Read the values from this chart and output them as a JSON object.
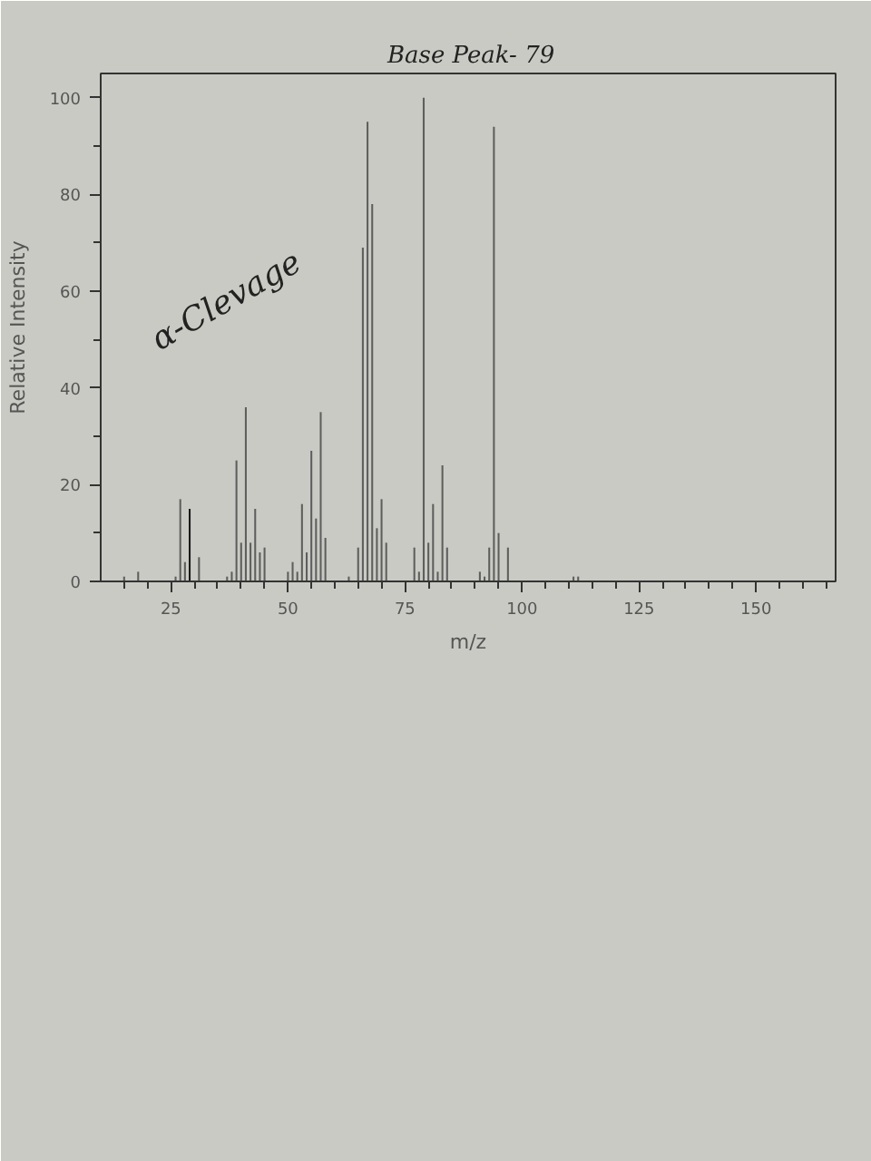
{
  "chart_data": {
    "type": "bar",
    "xlabel": "m/z",
    "ylabel": "Relative Intensity",
    "x": [
      15,
      18,
      26,
      27,
      28,
      29,
      31,
      37,
      38,
      39,
      40,
      41,
      42,
      43,
      44,
      45,
      50,
      51,
      52,
      53,
      54,
      55,
      56,
      57,
      58,
      63,
      65,
      66,
      67,
      68,
      69,
      70,
      71,
      77,
      78,
      79,
      80,
      81,
      82,
      83,
      84,
      91,
      92,
      93,
      94,
      95,
      97,
      111,
      112
    ],
    "values": [
      1,
      2,
      1,
      17,
      4,
      15,
      5,
      1,
      2,
      25,
      8,
      36,
      8,
      15,
      6,
      7,
      2,
      4,
      2,
      16,
      6,
      27,
      13,
      35,
      9,
      1,
      7,
      69,
      95,
      78,
      11,
      17,
      8,
      7,
      2,
      100,
      8,
      16,
      2,
      24,
      7,
      2,
      1,
      7,
      94,
      10,
      7,
      1,
      1
    ],
    "colors": [
      "#5e5e5e",
      "#5e5e5e",
      "#5e5e5e",
      "#5e5e5e",
      "#5e5e5e",
      "#1a1a1a",
      "#5e5e5e",
      "#5e5e5e",
      "#5e5e5e",
      "#5e5e5e",
      "#5e5e5e",
      "#5e5e5e",
      "#5e5e5e",
      "#5e5e5e",
      "#5e5e5e",
      "#5e5e5e",
      "#5e5e5e",
      "#5e5e5e",
      "#5e5e5e",
      "#5e5e5e",
      "#5e5e5e",
      "#5e5e5e",
      "#5e5e5e",
      "#5e5e5e",
      "#5e5e5e",
      "#5e5e5e",
      "#5e5e5e",
      "#5e5e5e",
      "#5e5e5e",
      "#5e5e5e",
      "#5e5e5e",
      "#5e5e5e",
      "#5e5e5e",
      "#5e5e5e",
      "#5e5e5e",
      "#5e5e5e",
      "#5e5e5e",
      "#5e5e5e",
      "#5e5e5e",
      "#5e5e5e",
      "#5e5e5e",
      "#5e5e5e",
      "#5e5e5e",
      "#5e5e5e",
      "#5e5e5e",
      "#5e5e5e",
      "#5e5e5e",
      "#5e5e5e",
      "#5e5e5e"
    ],
    "xlim": [
      10,
      167
    ],
    "ylim": [
      0,
      105
    ],
    "xticks": [
      {
        "value": 15,
        "label": null
      },
      {
        "value": 20,
        "label": null
      },
      25,
      {
        "value": 30,
        "label": null
      },
      {
        "value": 35,
        "label": null
      },
      {
        "value": 40,
        "label": null
      },
      {
        "value": 45,
        "label": null
      },
      50,
      {
        "value": 55,
        "label": null
      },
      {
        "value": 60,
        "label": null
      },
      {
        "value": 65,
        "label": null
      },
      {
        "value": 70,
        "label": null
      },
      75,
      {
        "value": 80,
        "label": null
      },
      {
        "value": 85,
        "label": null
      },
      {
        "value": 90,
        "label": null
      },
      {
        "value": 95,
        "label": null
      },
      100,
      {
        "value": 105,
        "label": null
      },
      {
        "value": 110,
        "label": null
      },
      {
        "value": 115,
        "label": null
      },
      {
        "value": 120,
        "label": null
      },
      125,
      {
        "value": 130,
        "label": null
      },
      {
        "value": 135,
        "label": null
      },
      {
        "value": 140,
        "label": null
      },
      {
        "value": 145,
        "label": null
      },
      150,
      {
        "value": 155,
        "label": null
      },
      {
        "value": 160,
        "label": null
      },
      {
        "value": 165,
        "label": null
      }
    ],
    "yticks": [
      0,
      {
        "value": 10,
        "label": null
      },
      20,
      {
        "value": 30,
        "label": null
      },
      40,
      {
        "value": 50,
        "label": null
      },
      60,
      {
        "value": 70,
        "label": null
      },
      80,
      {
        "value": 90,
        "label": null
      },
      100
    ],
    "annotations": [
      "Base Peak- 79",
      "α-Clevage"
    ]
  }
}
